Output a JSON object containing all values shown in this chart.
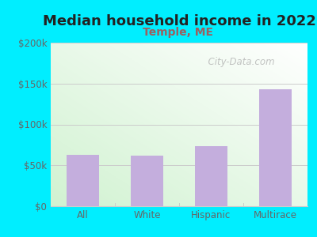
{
  "title": "Median household income in 2022",
  "subtitle": "Temple, ME",
  "categories": [
    "All",
    "White",
    "Hispanic",
    "Multirace"
  ],
  "values": [
    63000,
    62000,
    73000,
    143000
  ],
  "bar_color": "#c4aedd",
  "bg_outer": "#00eeff",
  "title_color": "#222222",
  "subtitle_color": "#9b6060",
  "tick_color": "#666666",
  "grid_color": "#cccccc",
  "ylim": [
    0,
    200000
  ],
  "yticks": [
    0,
    50000,
    100000,
    150000,
    200000
  ],
  "ytick_labels": [
    "$0",
    "$50k",
    "$100k",
    "$150k",
    "$200k"
  ],
  "watermark": "City-Data.com",
  "title_fontsize": 13,
  "subtitle_fontsize": 10,
  "tick_fontsize": 8.5,
  "gradient_colors": [
    "#e8f8e8",
    "#f8fff8",
    "#ffffff"
  ],
  "gradient_top_right": "#ffffff",
  "gradient_bottom_left": "#d0f0d0"
}
